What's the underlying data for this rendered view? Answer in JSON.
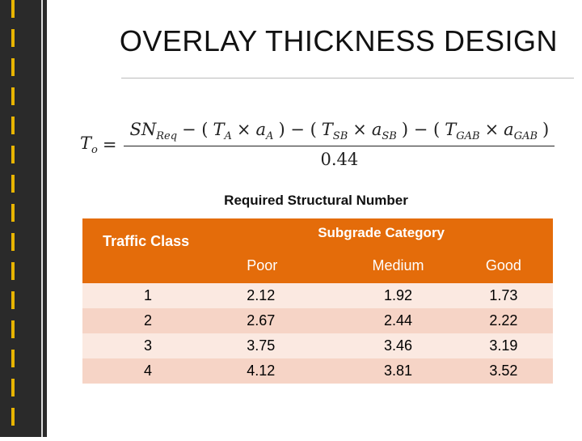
{
  "title": "OVERLAY THICKNESS DESIGN",
  "formula": {
    "lhs": [
      {
        "text": "T",
        "sub": "o"
      },
      {
        "text": "="
      }
    ],
    "numerator": [
      {
        "text": "SN",
        "sub": "Req"
      },
      {
        "text": "− ("
      },
      {
        "text": "T",
        "sub": "A"
      },
      {
        "text": "×"
      },
      {
        "text": "a",
        "sub": "A"
      },
      {
        "text": ") − ("
      },
      {
        "text": "T",
        "sub": "SB"
      },
      {
        "text": "×"
      },
      {
        "text": "a",
        "sub": "SB"
      },
      {
        "text": ") − ("
      },
      {
        "text": "T",
        "sub": "GAB"
      },
      {
        "text": "×"
      },
      {
        "text": "a",
        "sub": "GAB"
      },
      {
        "text": ")"
      }
    ],
    "denominator": "0.44"
  },
  "table": {
    "caption": "Required Structural Number",
    "row_header": "Traffic Class",
    "group_header": "Subgrade Category",
    "columns": [
      "Poor",
      "Medium",
      "Good"
    ],
    "rows": [
      [
        "1",
        "2.12",
        "1.92",
        "1.73"
      ],
      [
        "2",
        "2.67",
        "2.44",
        "2.22"
      ],
      [
        "3",
        "3.75",
        "3.46",
        "3.19"
      ],
      [
        "4",
        "4.12",
        "3.81",
        "3.52"
      ]
    ]
  }
}
